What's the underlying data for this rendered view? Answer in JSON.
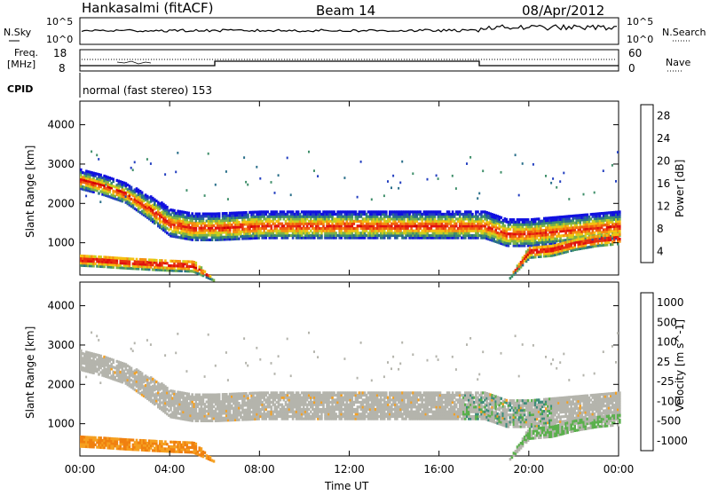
{
  "header": {
    "station": "Hankasalmi (fitACF)",
    "beam": "Beam 14",
    "date": "08/Apr/2012"
  },
  "strip_labels": {
    "nsky": "N.Sky",
    "nsearch": "N.Search",
    "freq_line1": "Freq.",
    "freq_line2": "[MHz]",
    "nave": "Nave",
    "cpid": "CPID",
    "cpid_value": "normal (fast stereo) 153",
    "noise_tick_hi": "10^5",
    "noise_tick_lo": "10^0",
    "freq_tick_hi": "18",
    "freq_tick_lo": "8",
    "nave_tick_hi": "60",
    "nave_tick_lo": "0"
  },
  "colorbar_power": {
    "label": "Power [dB]",
    "ticks": [
      "28",
      "24",
      "20",
      "16",
      "12",
      "8",
      "4"
    ],
    "colors": [
      "#1010e0",
      "#2440c0",
      "#2a6f8a",
      "#3f8f6a",
      "#7ab34a",
      "#c8d020",
      "#f5c010",
      "#f59010",
      "#f06010",
      "#e83010",
      "#e01010",
      "#d00000"
    ]
  },
  "colorbar_velocity": {
    "label": "Velocity [m s^-1]",
    "ticks": [
      "1000",
      "500",
      "100",
      "25",
      "-25",
      "-100",
      "-500",
      "-1000"
    ],
    "colors": [
      "#1a3fb0",
      "#2d6fb4",
      "#3c8c7a",
      "#5ab04c",
      "#b4b4ac",
      "#f5a020",
      "#f08010",
      "#e85010",
      "#e02020"
    ]
  },
  "chart_data": [
    {
      "type": "heatmap",
      "title": "Power",
      "xlabel": "Time UT",
      "ylabel": "Slant Range [km]",
      "x_ticks": [
        "00:00",
        "04:00",
        "08:00",
        "12:00",
        "16:00",
        "20:00",
        "00:00"
      ],
      "y_ticks": [
        "1000",
        "2000",
        "3000",
        "4000"
      ],
      "xlim": [
        0,
        24
      ],
      "ylim": [
        180,
        4600
      ],
      "zlabel": "Power [dB]",
      "zlim": [
        0,
        30
      ],
      "bands": [
        {
          "x": [
            0,
            1,
            2,
            3,
            4,
            5,
            6,
            8,
            10,
            12,
            14,
            16,
            18,
            19,
            20,
            21,
            22,
            23,
            24
          ],
          "center": [
            2600,
            2450,
            2250,
            1900,
            1500,
            1400,
            1400,
            1450,
            1450,
            1450,
            1450,
            1450,
            1450,
            1250,
            1250,
            1300,
            1350,
            1400,
            1450
          ],
          "width": [
            250,
            250,
            250,
            300,
            350,
            350,
            350,
            350,
            350,
            350,
            350,
            350,
            350,
            350,
            350,
            350,
            350,
            350,
            350
          ],
          "value": 16
        },
        {
          "x": [
            0,
            1,
            2,
            3,
            4,
            5,
            6,
            8,
            10,
            12,
            14,
            16,
            18,
            19,
            20,
            21,
            22,
            23,
            24
          ],
          "center": [
            550,
            520,
            480,
            450,
            420,
            400,
            0,
            0,
            0,
            0,
            0,
            0,
            0,
            0,
            750,
            800,
            950,
            1050,
            1100
          ],
          "width": [
            150,
            150,
            150,
            150,
            150,
            150,
            0,
            0,
            0,
            0,
            0,
            0,
            0,
            0,
            150,
            150,
            150,
            150,
            150
          ],
          "value": 22
        }
      ]
    },
    {
      "type": "heatmap",
      "title": "Velocity",
      "xlabel": "Time UT",
      "ylabel": "Slant Range [km]",
      "x_ticks": [
        "00:00",
        "04:00",
        "08:00",
        "12:00",
        "16:00",
        "20:00",
        "00:00"
      ],
      "y_ticks": [
        "1000",
        "2000",
        "3000",
        "4000"
      ],
      "xlim": [
        0,
        24
      ],
      "ylim": [
        180,
        4600
      ],
      "zlabel": "Velocity [m s^-1]",
      "zlim": [
        -1000,
        1000
      ]
    }
  ]
}
